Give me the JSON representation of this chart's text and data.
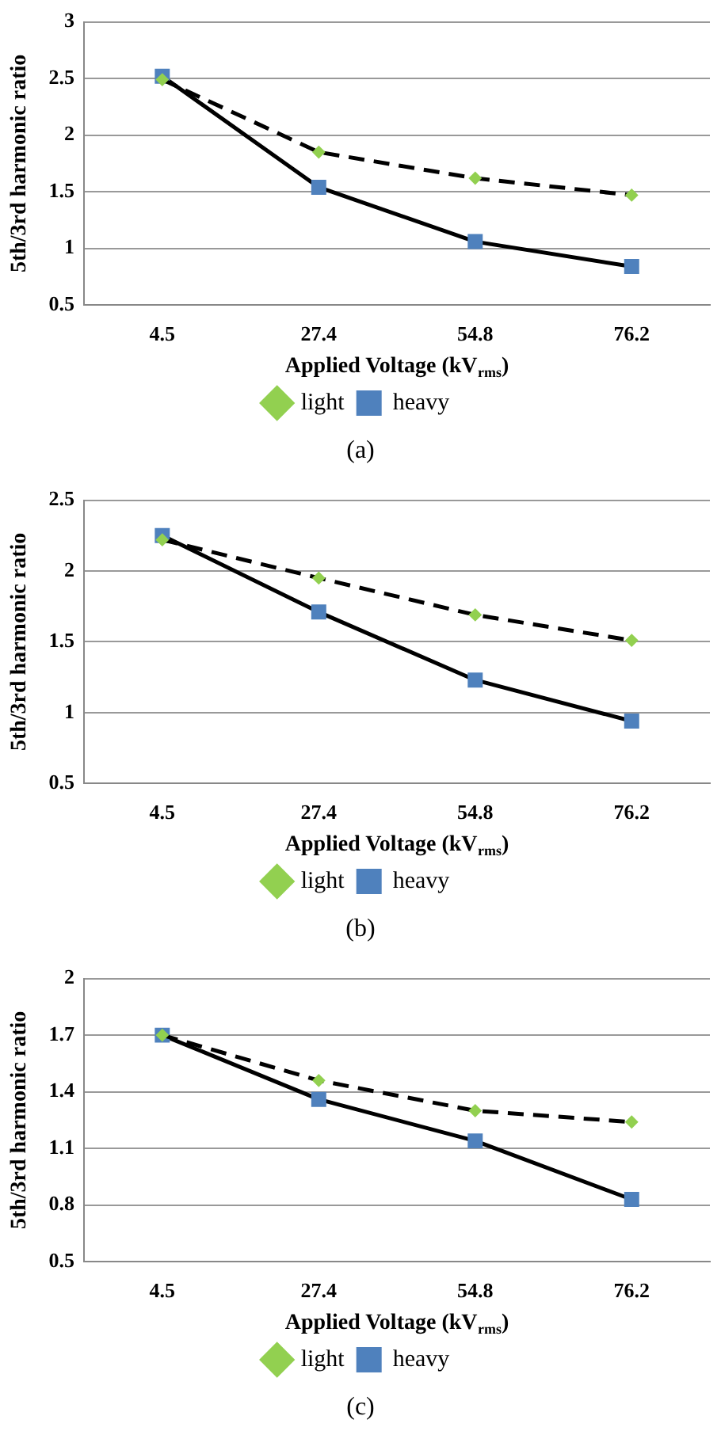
{
  "chart_data": [
    {
      "type": "line",
      "categories": [
        "4.5",
        "27.4",
        "54.8",
        "76.2"
      ],
      "xlabel": "Applied Voltage (kV$_{rms}$)",
      "ylabel": "5th/3rd harmonic ratio",
      "ylim": [
        0.5,
        3
      ],
      "yticks": [
        0.5,
        1,
        1.5,
        2,
        2.5,
        3
      ],
      "grid": "y",
      "legend": "bottom",
      "annotations": [
        "(a)"
      ],
      "series": [
        {
          "name": "light",
          "color": "#92d050",
          "marker": "diamond",
          "line_style": "dashed",
          "values": [
            2.49,
            1.85,
            1.62,
            1.47
          ]
        },
        {
          "name": "heavy",
          "color": "#4f81bd",
          "marker": "square",
          "line_style": "solid",
          "values": [
            2.52,
            1.54,
            1.06,
            0.84
          ]
        }
      ]
    },
    {
      "type": "line",
      "categories": [
        "4.5",
        "27.4",
        "54.8",
        "76.2"
      ],
      "xlabel": "Applied Voltage (kV$_{rms}$)",
      "ylabel": "5th/3rd harmonic ratio",
      "ylim": [
        0.5,
        2.5
      ],
      "yticks": [
        0.5,
        1,
        1.5,
        2,
        2.5
      ],
      "grid": "y",
      "legend": "bottom",
      "annotations": [
        "(b)"
      ],
      "series": [
        {
          "name": "light",
          "color": "#92d050",
          "marker": "diamond",
          "line_style": "dashed",
          "values": [
            2.22,
            1.95,
            1.69,
            1.51
          ]
        },
        {
          "name": "heavy",
          "color": "#4f81bd",
          "marker": "square",
          "line_style": "solid",
          "values": [
            2.25,
            1.71,
            1.23,
            0.94
          ]
        }
      ]
    },
    {
      "type": "line",
      "categories": [
        "4.5",
        "27.4",
        "54.8",
        "76.2"
      ],
      "xlabel": "Applied Voltage (kV$_{rms}$)",
      "ylabel": "5th/3rd harmonic ratio",
      "ylim": [
        0.5,
        2
      ],
      "yticks": [
        0.5,
        0.8,
        1.1,
        1.4,
        1.7,
        2
      ],
      "grid": "y",
      "legend": "bottom",
      "annotations": [
        "(c)"
      ],
      "series": [
        {
          "name": "light",
          "color": "#92d050",
          "marker": "diamond",
          "line_style": "dashed",
          "values": [
            1.7,
            1.46,
            1.3,
            1.24
          ]
        },
        {
          "name": "heavy",
          "color": "#4f81bd",
          "marker": "square",
          "line_style": "solid",
          "values": [
            1.7,
            1.36,
            1.14,
            0.83
          ]
        }
      ]
    }
  ]
}
